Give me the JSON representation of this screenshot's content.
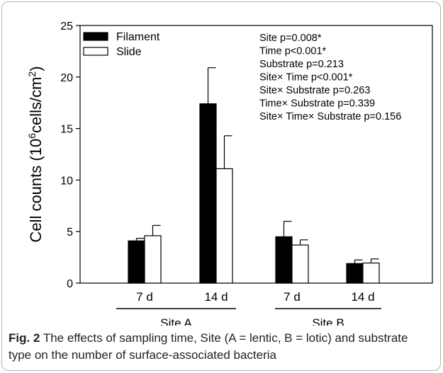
{
  "chart_data": {
    "type": "bar",
    "ylabel_main": "Cell counts (10",
    "ylabel_sup1": "6",
    "ylabel_mid": "cells/cm",
    "ylabel_sup2": "2",
    "ylabel_end": ")",
    "ylim": [
      0,
      25
    ],
    "yticks": [
      "0",
      "5",
      "10",
      "15",
      "20",
      "25"
    ],
    "categories": [
      "7 d",
      "14 d",
      "7 d",
      "14 d"
    ],
    "groups": [
      {
        "label": "Site A",
        "categories": [
          0,
          1
        ]
      },
      {
        "label": "Site B",
        "categories": [
          2,
          3
        ]
      }
    ],
    "series": [
      {
        "name": "Filament",
        "color": "#000000",
        "values": [
          4.1,
          17.4,
          4.5,
          1.9
        ],
        "errors": [
          0.25,
          3.5,
          1.5,
          0.35
        ]
      },
      {
        "name": "Slide",
        "color": "#ffffff",
        "values": [
          4.6,
          11.1,
          3.7,
          1.95
        ],
        "errors": [
          1.0,
          3.2,
          0.5,
          0.4
        ]
      }
    ],
    "legend_position": "top-left",
    "annotations": [
      "Site p=0.008*",
      "Time p<0.001*",
      "Substrate p=0.213",
      "Site× Time p<0.001*",
      "Site× Substrate p=0.263",
      "Time× Substrate p=0.339",
      "Site× Time× Substrate p=0.156"
    ],
    "grid": false
  },
  "caption": {
    "label": "Fig. 2",
    "text": " The effects of sampling time, Site (A = lentic, B = lotic) and substrate type on the number of surface-associated bacteria"
  }
}
